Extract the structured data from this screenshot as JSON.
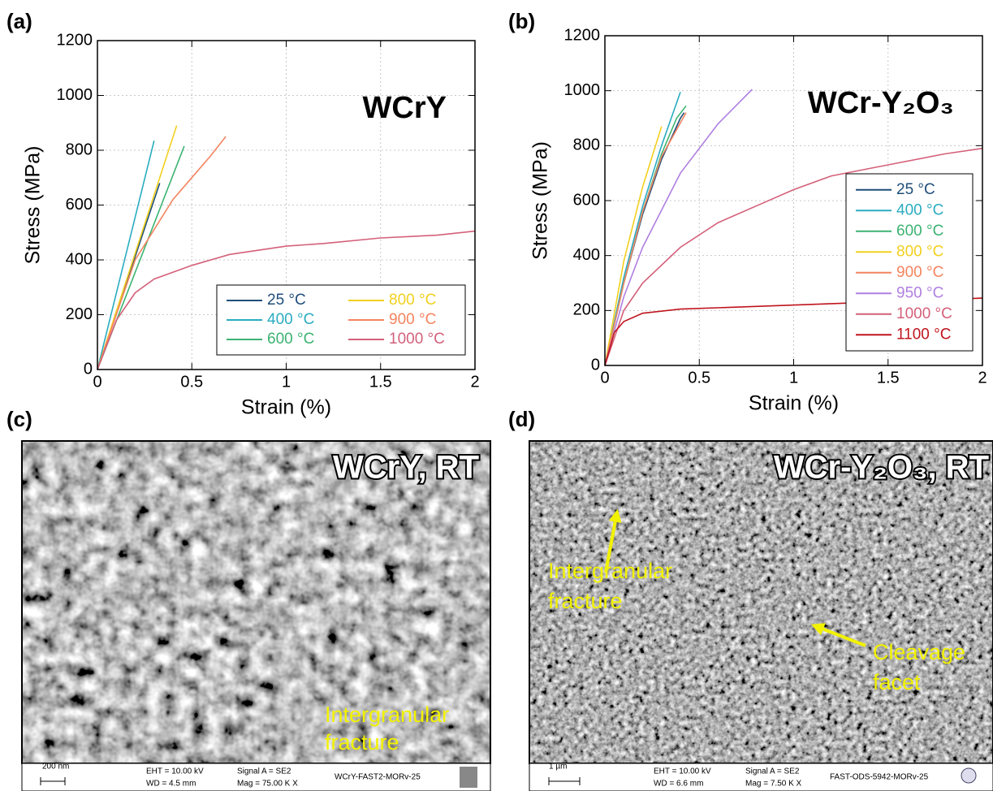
{
  "panels": [
    "(a)",
    "(b)",
    "(c)",
    "(d)"
  ],
  "chart_data": [
    {
      "type": "line",
      "title": "WCrY",
      "x_label": "Strain (%)",
      "y_label": "Stress (MPa)",
      "xlim": [
        0,
        2
      ],
      "ylim": [
        0,
        1200
      ],
      "xticks": [
        0,
        0.5,
        1,
        1.5,
        2
      ],
      "yticks": [
        0,
        200,
        400,
        600,
        800,
        1000,
        1200
      ],
      "grid": true,
      "legend": "lower right",
      "legend_columns": 2,
      "series": [
        {
          "name": "25 °C",
          "color": "#1f4e79",
          "x": [
            0,
            0.33
          ],
          "values": [
            0,
            680
          ]
        },
        {
          "name": "400 °C",
          "color": "#2aacc0",
          "x": [
            0,
            0.3
          ],
          "values": [
            0,
            835
          ]
        },
        {
          "name": "600 °C",
          "color": "#3cb371",
          "x": [
            0,
            0.46
          ],
          "values": [
            0,
            815
          ]
        },
        {
          "name": "800 °C",
          "color": "#f2d01e",
          "x": [
            0,
            0.42
          ],
          "values": [
            0,
            890
          ]
        },
        {
          "name": "900 °C",
          "color": "#f4845f",
          "x": [
            0,
            0.2,
            0.4,
            0.5,
            0.6,
            0.68
          ],
          "values": [
            0,
            400,
            620,
            700,
            780,
            850
          ]
        },
        {
          "name": "1000 °C",
          "color": "#d4607a",
          "x": [
            0,
            0.1,
            0.2,
            0.3,
            0.5,
            0.7,
            1,
            1.2,
            1.5,
            1.8,
            2
          ],
          "values": [
            0,
            180,
            280,
            330,
            380,
            420,
            450,
            460,
            480,
            490,
            505
          ]
        }
      ]
    },
    {
      "type": "line",
      "title": "WCr-Y₂O₃",
      "x_label": "Strain (%)",
      "y_label": "Stress (MPa)",
      "xlim": [
        0,
        2
      ],
      "ylim": [
        0,
        1200
      ],
      "xticks": [
        0,
        0.5,
        1,
        1.5,
        2
      ],
      "yticks": [
        0,
        200,
        400,
        600,
        800,
        1000,
        1200
      ],
      "grid": true,
      "legend": "lower right",
      "legend_columns": 1,
      "series": [
        {
          "name": "25 °C",
          "color": "#1f4e79",
          "x": [
            0,
            0.1,
            0.2,
            0.3,
            0.4,
            0.42
          ],
          "values": [
            0,
            300,
            550,
            750,
            900,
            920
          ]
        },
        {
          "name": "400 °C",
          "color": "#2aacc0",
          "x": [
            0,
            0.1,
            0.2,
            0.3,
            0.4
          ],
          "values": [
            0,
            320,
            580,
            800,
            995
          ]
        },
        {
          "name": "600 °C",
          "color": "#3cb371",
          "x": [
            0,
            0.1,
            0.2,
            0.3,
            0.38,
            0.43
          ],
          "values": [
            0,
            300,
            560,
            770,
            900,
            945
          ]
        },
        {
          "name": "800 °C",
          "color": "#f2d01e",
          "x": [
            0,
            0.1,
            0.2,
            0.3
          ],
          "values": [
            0,
            380,
            650,
            870
          ]
        },
        {
          "name": "900 °C",
          "color": "#f4845f",
          "x": [
            0,
            0.1,
            0.2,
            0.3,
            0.43
          ],
          "values": [
            0,
            300,
            560,
            760,
            920
          ]
        },
        {
          "name": "950 °C",
          "color": "#b07fe0",
          "x": [
            0,
            0.1,
            0.2,
            0.4,
            0.6,
            0.78
          ],
          "values": [
            0,
            250,
            430,
            700,
            880,
            1005
          ]
        },
        {
          "name": "1000 °C",
          "color": "#d4607a",
          "x": [
            0,
            0.1,
            0.2,
            0.4,
            0.6,
            0.8,
            1,
            1.2,
            1.5,
            1.8,
            2
          ],
          "values": [
            0,
            200,
            300,
            430,
            520,
            580,
            640,
            690,
            730,
            770,
            790
          ]
        },
        {
          "name": "1100 °C",
          "color": "#c0141e",
          "x": [
            0,
            0.05,
            0.1,
            0.2,
            0.4,
            0.8,
            1.2,
            1.6,
            2
          ],
          "values": [
            0,
            120,
            160,
            190,
            205,
            215,
            225,
            235,
            245
          ]
        }
      ]
    }
  ],
  "images": [
    {
      "title": "WCrY, RT",
      "annotations": [
        {
          "lines": [
            "Intergranular",
            "fracture"
          ]
        }
      ],
      "info": {
        "scale": "200 nm",
        "eht": "EHT = 10.00 kV",
        "wd": "WD =  4.5 mm",
        "signal": "Signal A = SE2",
        "mag": "Mag =  75.00 K X",
        "file": "WCrY-FAST2-MORv-25"
      }
    },
    {
      "title": "WCr-Y₂O₃, RT",
      "annotations": [
        {
          "lines": [
            "Intergranular",
            "fracture"
          ]
        },
        {
          "lines": [
            "Cleavage",
            "facet"
          ]
        }
      ],
      "info": {
        "scale": "1 µm",
        "eht": "EHT = 10.00 kV",
        "wd": "WD =  6.6 mm",
        "signal": "Signal A = SE2",
        "mag": "Mag =   7.50 K X",
        "file": "FAST-ODS-5942-MORv-25"
      }
    }
  ]
}
